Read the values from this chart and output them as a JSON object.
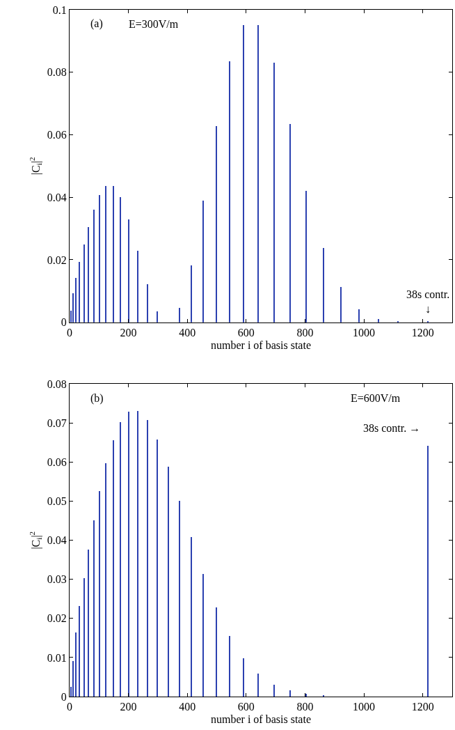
{
  "chart_data": [
    {
      "type": "bar",
      "xlabel": "number i of basis state",
      "ylabel": "|C$_{i}$|$^{2}$",
      "color": "#2b40b0",
      "x": [
        4,
        12,
        22,
        34,
        49,
        64,
        83,
        102,
        124,
        149,
        174,
        202,
        232,
        264,
        298,
        373,
        413,
        454,
        498,
        544,
        592,
        642,
        695,
        749,
        805,
        862,
        922,
        984,
        1049,
        1115,
        1218
      ],
      "values": [
        0.0036,
        0.0092,
        0.0141,
        0.0193,
        0.0248,
        0.0305,
        0.036,
        0.0408,
        0.0435,
        0.0435,
        0.04,
        0.0329,
        0.0229,
        0.0121,
        0.0034,
        0.0045,
        0.0181,
        0.0389,
        0.0627,
        0.0834,
        0.0952,
        0.095,
        0.0831,
        0.0635,
        0.0421,
        0.0238,
        0.0112,
        0.0042,
        0.0011,
        0.0002,
        0.0004
      ],
      "xlim": [
        0,
        1300
      ],
      "xticks": [
        0,
        200,
        400,
        600,
        800,
        1000,
        1200
      ],
      "ylim": [
        0,
        0.1
      ],
      "yticks": [
        0,
        0.02,
        0.04,
        0.06,
        0.08,
        0.1
      ],
      "legend": false,
      "annotations": [
        "(a)",
        "E=300V/m",
        "38s contr.\n↓"
      ]
    },
    {
      "type": "bar",
      "xlabel": "number i of basis state",
      "ylabel": "|C$_{i}$|$^{2}$",
      "color": "#2b40b0",
      "x": [
        4,
        12,
        22,
        34,
        49,
        64,
        83,
        102,
        124,
        149,
        174,
        202,
        232,
        264,
        298,
        335,
        373,
        413,
        454,
        498,
        544,
        592,
        642,
        695,
        749,
        805,
        862,
        1218
      ],
      "values": [
        0.0024,
        0.0091,
        0.0163,
        0.0232,
        0.0303,
        0.0376,
        0.0451,
        0.0526,
        0.0596,
        0.0656,
        0.0702,
        0.0729,
        0.0731,
        0.0707,
        0.0658,
        0.0588,
        0.0501,
        0.0408,
        0.0314,
        0.0227,
        0.0155,
        0.0098,
        0.0058,
        0.003,
        0.0015,
        0.0006,
        0.0003,
        0.0641
      ],
      "xlim": [
        0,
        1300
      ],
      "xticks": [
        0,
        200,
        400,
        600,
        800,
        1000,
        1200
      ],
      "ylim": [
        0,
        0.08
      ],
      "yticks": [
        0,
        0.01,
        0.02,
        0.03,
        0.04,
        0.05,
        0.06,
        0.07,
        0.08
      ],
      "legend": false,
      "annotations": [
        "(b)",
        "E=600V/m",
        "38s contr. →"
      ]
    }
  ]
}
